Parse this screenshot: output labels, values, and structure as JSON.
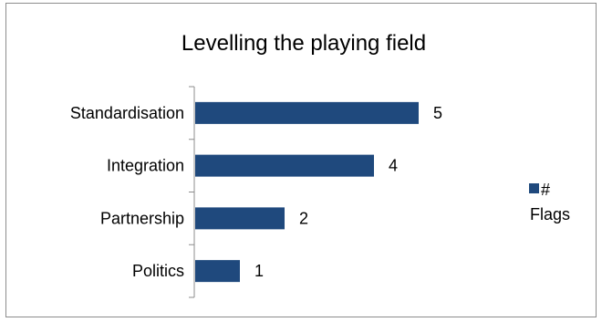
{
  "chart_data": {
    "type": "bar",
    "orientation": "horizontal",
    "title": "Levelling the playing field",
    "categories": [
      "Standardisation",
      "Integration",
      "Partnership",
      "Politics"
    ],
    "series": [
      {
        "name": "# Flags",
        "values": [
          5,
          4,
          2,
          1
        ],
        "color": "#1f497d"
      }
    ],
    "data_labels": true,
    "xlim": [
      0,
      6
    ],
    "grid": false,
    "legend_position": "right",
    "legend_lines": [
      "#",
      "Flags"
    ]
  }
}
